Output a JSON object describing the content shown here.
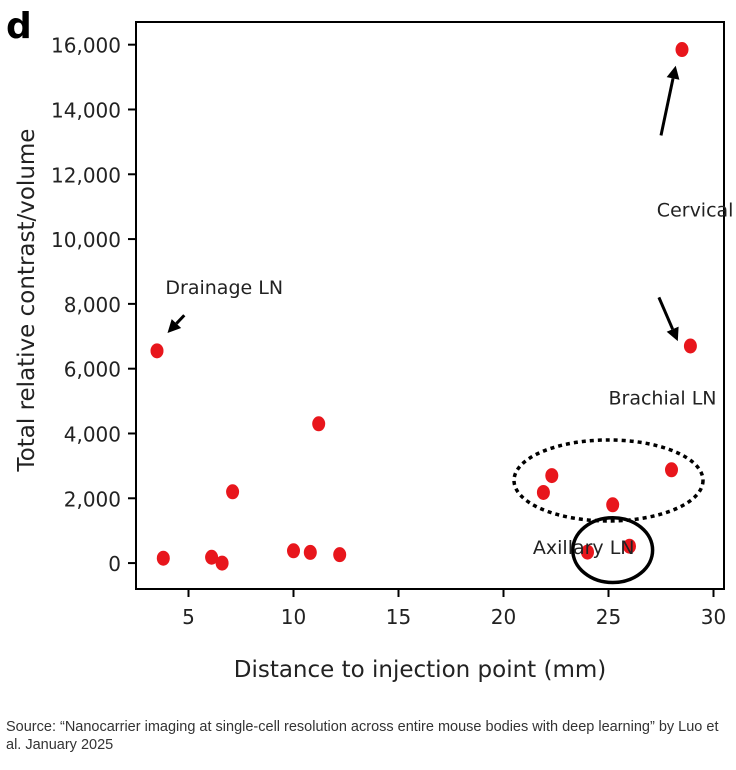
{
  "panel_label": "d",
  "source": "Source: “Nanocarrier imaging at single-cell resolution across entire mouse bodies with deep learning” by Luo et al. January 2025",
  "chart_data": {
    "type": "scatter",
    "title": "",
    "xlabel": "Distance to injection point (mm)",
    "ylabel": "Total relative contrast/volume",
    "xlim": [
      2.5,
      30.5
    ],
    "ylim": [
      -800,
      16700
    ],
    "xticks": [
      5,
      10,
      15,
      20,
      25,
      30
    ],
    "xtick_labels": [
      "5",
      "10",
      "15",
      "20",
      "25",
      "30"
    ],
    "yticks": [
      0,
      2000,
      4000,
      6000,
      8000,
      10000,
      12000,
      14000,
      16000
    ],
    "ytick_labels": [
      "0",
      "2,000",
      "4,000",
      "6,000",
      "8,000",
      "10,000",
      "12,000",
      "14,000",
      "16,000"
    ],
    "grid": false,
    "marker_color": "#e8161c",
    "points": [
      {
        "x": 3.5,
        "y": 6550
      },
      {
        "x": 3.8,
        "y": 150
      },
      {
        "x": 6.1,
        "y": 180
      },
      {
        "x": 6.6,
        "y": 0
      },
      {
        "x": 7.1,
        "y": 2200
      },
      {
        "x": 10.0,
        "y": 380
      },
      {
        "x": 10.8,
        "y": 330
      },
      {
        "x": 11.2,
        "y": 4300
      },
      {
        "x": 12.2,
        "y": 260
      },
      {
        "x": 21.9,
        "y": 2180
      },
      {
        "x": 22.3,
        "y": 2700
      },
      {
        "x": 24.0,
        "y": 340
      },
      {
        "x": 25.2,
        "y": 1800
      },
      {
        "x": 26.0,
        "y": 520
      },
      {
        "x": 28.0,
        "y": 2880
      },
      {
        "x": 28.5,
        "y": 15850
      },
      {
        "x": 28.9,
        "y": 6700
      }
    ],
    "annotations": [
      {
        "text": "Drainage LN",
        "x": 3.9,
        "y": 8300
      },
      {
        "text": "Cervical LN",
        "x": 27.3,
        "y": 10700
      },
      {
        "text": "Brachial LN",
        "x": 25.0,
        "y": 4900
      },
      {
        "text": "Axillary LN",
        "x": 21.4,
        "y": 280
      }
    ],
    "arrows": [
      {
        "from": [
          4.8,
          7650
        ],
        "to": [
          4.0,
          7100
        ]
      },
      {
        "from": [
          27.5,
          13200
        ],
        "to": [
          28.2,
          15350
        ]
      },
      {
        "from": [
          27.4,
          8200
        ],
        "to": [
          28.3,
          6850
        ]
      }
    ],
    "groupings": [
      {
        "name": "brachial",
        "style": "dotted",
        "cx": 25.0,
        "cy": 2550,
        "rx": 4.5,
        "ry": 1250
      },
      {
        "name": "axillary",
        "style": "solid",
        "cx": 25.2,
        "cy": 400,
        "rx": 1.9,
        "ry": 1000
      }
    ]
  }
}
